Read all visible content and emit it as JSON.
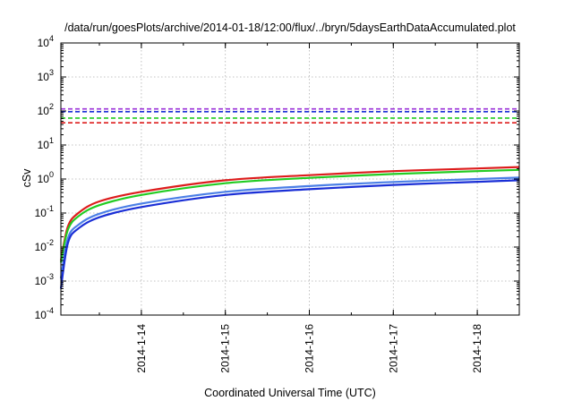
{
  "chart_data": {
    "type": "line",
    "title": "/data/run/goesPlots/archive/2014-01-18/12:00/flux/../bryn/5daysEarthDataAccumulated.plot",
    "xlabel": "Coordinated Universal Time (UTC)",
    "ylabel": "cSv",
    "y_scale": "log",
    "ylim": [
      0.0001,
      10000
    ],
    "y_ticks": [
      {
        "value": 0.0001,
        "base": "10",
        "exp": "-4"
      },
      {
        "value": 0.001,
        "base": "10",
        "exp": "-3"
      },
      {
        "value": 0.01,
        "base": "10",
        "exp": "-2"
      },
      {
        "value": 0.1,
        "base": "10",
        "exp": "-1"
      },
      {
        "value": 1,
        "base": "10",
        "exp": "0"
      },
      {
        "value": 10,
        "base": "10",
        "exp": "1"
      },
      {
        "value": 100,
        "base": "10",
        "exp": "2"
      },
      {
        "value": 1000,
        "base": "10",
        "exp": "3"
      },
      {
        "value": 10000,
        "base": "10",
        "exp": "4"
      }
    ],
    "xlim": [
      "2014-01-13 01:00",
      "2014-01-18 12:00"
    ],
    "x_ticks": [
      "2014-1-14",
      "2014-1-15",
      "2014-1-16",
      "2014-1-17",
      "2014-1-18"
    ],
    "grid": true,
    "legend": "none",
    "series": [
      {
        "style": "dashed",
        "color": "#9b30d8",
        "values": [
          {
            "x": "2014-01-13 01:00",
            "y": 115
          },
          {
            "x": "2014-01-18 12:00",
            "y": 115
          }
        ]
      },
      {
        "style": "dashed",
        "color": "#1a2fd6",
        "values": [
          {
            "x": "2014-01-13 01:00",
            "y": 95
          },
          {
            "x": "2014-01-18 12:00",
            "y": 95
          }
        ]
      },
      {
        "style": "dashed",
        "color": "#22cc22",
        "values": [
          {
            "x": "2014-01-13 01:00",
            "y": 62
          },
          {
            "x": "2014-01-18 12:00",
            "y": 62
          }
        ]
      },
      {
        "style": "dashed",
        "color": "#dd1c1c",
        "values": [
          {
            "x": "2014-01-13 01:00",
            "y": 45
          },
          {
            "x": "2014-01-18 12:00",
            "y": 45
          }
        ]
      },
      {
        "style": "solid",
        "color": "#dd1c1c",
        "values": [
          {
            "x": "2014-01-13 01:00",
            "y": 0.004
          },
          {
            "x": "2014-01-13 03:00",
            "y": 0.04
          },
          {
            "x": "2014-01-13 06:00",
            "y": 0.1
          },
          {
            "x": "2014-01-13 12:00",
            "y": 0.22
          },
          {
            "x": "2014-01-14 00:00",
            "y": 0.42
          },
          {
            "x": "2014-01-15 00:00",
            "y": 0.92
          },
          {
            "x": "2014-01-16 00:00",
            "y": 1.3
          },
          {
            "x": "2014-01-17 00:00",
            "y": 1.7
          },
          {
            "x": "2014-01-18 00:00",
            "y": 2.05
          },
          {
            "x": "2014-01-18 12:00",
            "y": 2.25
          }
        ]
      },
      {
        "style": "solid",
        "color": "#22cc22",
        "values": [
          {
            "x": "2014-01-13 01:00",
            "y": 0.0035
          },
          {
            "x": "2014-01-13 03:00",
            "y": 0.032
          },
          {
            "x": "2014-01-13 06:00",
            "y": 0.08
          },
          {
            "x": "2014-01-13 12:00",
            "y": 0.17
          },
          {
            "x": "2014-01-14 00:00",
            "y": 0.34
          },
          {
            "x": "2014-01-15 00:00",
            "y": 0.75
          },
          {
            "x": "2014-01-16 00:00",
            "y": 1.08
          },
          {
            "x": "2014-01-17 00:00",
            "y": 1.4
          },
          {
            "x": "2014-01-18 00:00",
            "y": 1.7
          },
          {
            "x": "2014-01-18 12:00",
            "y": 1.85
          }
        ]
      },
      {
        "style": "solid",
        "color": "#4b7fe6",
        "values": [
          {
            "x": "2014-01-13 01:00",
            "y": 0.0012
          },
          {
            "x": "2014-01-13 03:00",
            "y": 0.018
          },
          {
            "x": "2014-01-13 06:00",
            "y": 0.045
          },
          {
            "x": "2014-01-13 12:00",
            "y": 0.095
          },
          {
            "x": "2014-01-14 00:00",
            "y": 0.19
          },
          {
            "x": "2014-01-15 00:00",
            "y": 0.42
          },
          {
            "x": "2014-01-16 00:00",
            "y": 0.62
          },
          {
            "x": "2014-01-17 00:00",
            "y": 0.82
          },
          {
            "x": "2014-01-18 00:00",
            "y": 1.0
          },
          {
            "x": "2014-01-18 12:00",
            "y": 1.1
          }
        ]
      },
      {
        "style": "solid",
        "color": "#1a2fd6",
        "values": [
          {
            "x": "2014-01-13 01:00",
            "y": 0.0006
          },
          {
            "x": "2014-01-13 03:00",
            "y": 0.013
          },
          {
            "x": "2014-01-13 06:00",
            "y": 0.035
          },
          {
            "x": "2014-01-13 12:00",
            "y": 0.075
          },
          {
            "x": "2014-01-14 00:00",
            "y": 0.15
          },
          {
            "x": "2014-01-15 00:00",
            "y": 0.34
          },
          {
            "x": "2014-01-16 00:00",
            "y": 0.5
          },
          {
            "x": "2014-01-17 00:00",
            "y": 0.67
          },
          {
            "x": "2014-01-18 00:00",
            "y": 0.83
          },
          {
            "x": "2014-01-18 12:00",
            "y": 0.92
          }
        ]
      }
    ]
  }
}
